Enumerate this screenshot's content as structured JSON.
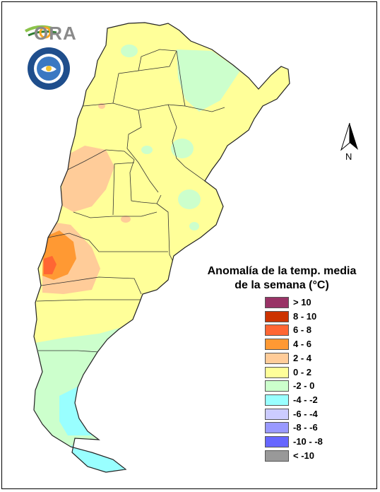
{
  "title_line1": "Anomalía de la temp. media",
  "title_line2": "de la semana (°C)",
  "logo_text": "ORA",
  "north_label": "N",
  "legend": [
    {
      "label": "> 10",
      "color": "#993366"
    },
    {
      "label": "8 - 10",
      "color": "#cc3300"
    },
    {
      "label": "6 - 8",
      "color": "#ff6633"
    },
    {
      "label": "4 - 6",
      "color": "#ff9933"
    },
    {
      "label": "2 - 4",
      "color": "#ffcc99"
    },
    {
      "label": "0 - 2",
      "color": "#ffff99"
    },
    {
      "label": "-2 - 0",
      "color": "#ccffcc"
    },
    {
      "label": "-4 - -2",
      "color": "#99ffff"
    },
    {
      "label": "-6 - -4",
      "color": "#ccccff"
    },
    {
      "label": "-8 - -6",
      "color": "#9999ff"
    },
    {
      "label": "-10 - -8",
      "color": "#6666ff"
    },
    {
      "label": "< -10",
      "color": "#999999"
    }
  ]
}
